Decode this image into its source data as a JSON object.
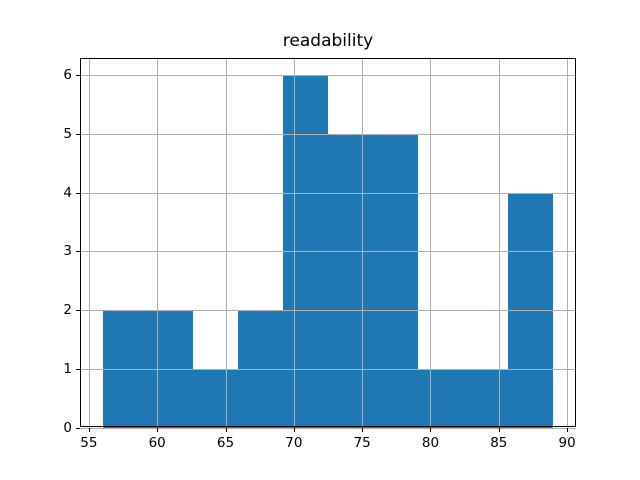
{
  "chart_data": {
    "type": "bar",
    "subtype": "histogram",
    "title": "readability",
    "xlabel": "",
    "ylabel": "",
    "bin_edges": [
      56,
      59.3,
      62.6,
      65.9,
      69.2,
      72.5,
      75.8,
      79.1,
      82.4,
      85.7,
      89
    ],
    "counts": [
      2,
      2,
      1,
      2,
      6,
      5,
      5,
      1,
      1,
      4
    ],
    "x_ticks": [
      55,
      60,
      65,
      70,
      75,
      80,
      85,
      90
    ],
    "y_ticks": [
      0,
      1,
      2,
      3,
      4,
      5,
      6
    ],
    "xlim": [
      54.35,
      90.65
    ],
    "ylim": [
      0,
      6.3
    ],
    "grid": true,
    "grid_above_bars": true,
    "colors": {
      "bar": "#1f77b4",
      "grid": "#b0b0b0",
      "spine": "#000000",
      "text": "#000000",
      "background": "#ffffff"
    }
  }
}
